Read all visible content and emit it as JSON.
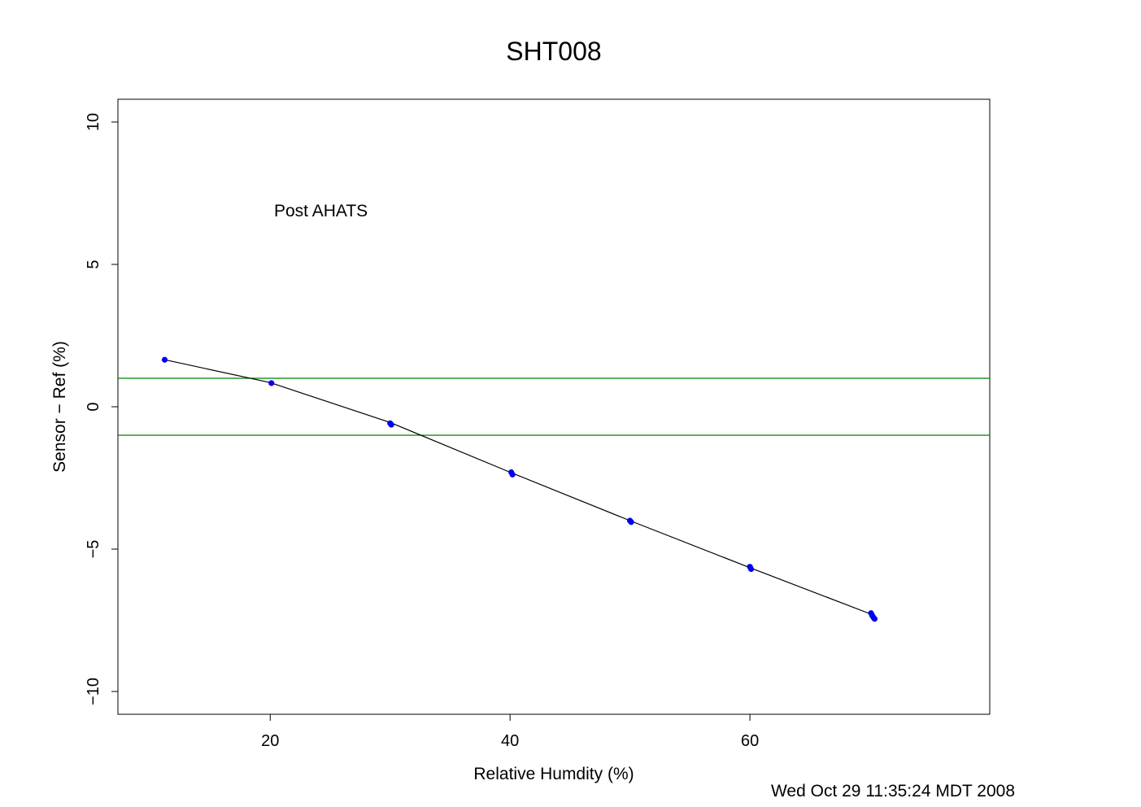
{
  "chart_data": {
    "type": "scatter",
    "title": "SHT008",
    "xlabel": "Relative Humdity (%)",
    "ylabel": "Sensor − Ref (%)",
    "annotation": "Post AHATS",
    "timestamp": "Wed Oct 29 11:35:24 MDT 2008",
    "xlim": [
      7.3,
      80.0
    ],
    "ylim": [
      -10.8,
      10.8
    ],
    "x_ticks": [
      20,
      40,
      60
    ],
    "y_ticks": [
      -10,
      -5,
      0,
      5,
      10
    ],
    "x_tick_labels": [
      "20",
      "40",
      "60"
    ],
    "y_tick_labels": [
      "−10",
      "−5",
      "0",
      "5",
      "10"
    ],
    "grid": false,
    "legend": "none",
    "colors": {
      "points": "#0000ee",
      "fit_line": "#000000",
      "reference_lines": "#008000"
    },
    "reference_lines": [
      1,
      -1
    ],
    "fit_line": {
      "x": [
        11.2,
        20.0,
        30.0,
        40.0,
        50.0,
        60.0,
        70.2
      ],
      "y": [
        1.65,
        0.85,
        -0.55,
        -2.3,
        -4.0,
        -5.65,
        -7.3
      ]
    },
    "points": {
      "x": [
        11.2,
        20.1,
        30.0,
        30.1,
        40.1,
        40.2,
        50.0,
        50.1,
        60.0,
        60.1,
        70.1,
        70.2,
        70.3,
        70.4
      ],
      "y": [
        1.65,
        0.83,
        -0.58,
        -0.63,
        -2.3,
        -2.38,
        -4.0,
        -4.05,
        -5.62,
        -5.7,
        -7.25,
        -7.33,
        -7.4,
        -7.45
      ]
    }
  }
}
